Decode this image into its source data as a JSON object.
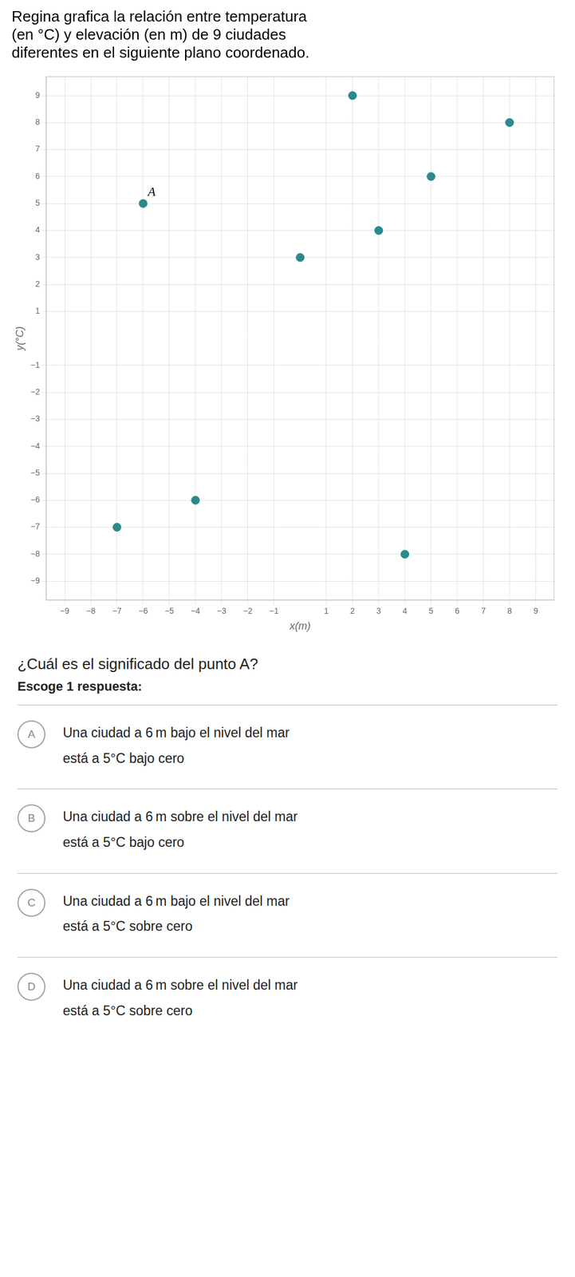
{
  "chart_data": {
    "type": "scatter",
    "title": [
      "Regina grafica la relación entre temperatura",
      "(en °C) y elevación (en m) de 9 ciudades",
      "diferentes en el siguiente plano coordenado."
    ],
    "x_label": "x(m)",
    "y_label": "y(°C)",
    "x": [
      -6,
      2,
      8,
      5,
      3,
      0,
      -4,
      -7,
      4
    ],
    "values": [
      5,
      9,
      8,
      6,
      4,
      3,
      -6,
      -7,
      -8
    ],
    "color": "#2a8a8c",
    "xlim": [
      -9.7,
      9.7
    ],
    "ylim": [
      -9.7,
      9.7
    ],
    "xticks": [
      {
        "value": -9,
        "label": "−9"
      },
      {
        "value": -8,
        "label": "−8"
      },
      {
        "value": -7,
        "label": "−7"
      },
      {
        "value": -6,
        "label": "−6"
      },
      {
        "value": -5,
        "label": "−5"
      },
      {
        "value": -4,
        "label": "−4"
      },
      {
        "value": -3,
        "label": "−3"
      },
      {
        "value": -2,
        "label": "−2"
      },
      {
        "value": -1,
        "label": "−1"
      },
      1,
      2,
      3,
      4,
      5,
      6,
      7,
      8,
      9
    ],
    "yticks": [
      {
        "value": -9,
        "label": "−9"
      },
      {
        "value": -8,
        "label": "−8"
      },
      {
        "value": -7,
        "label": "−7"
      },
      {
        "value": -6,
        "label": "−6"
      },
      {
        "value": -5,
        "label": "−5"
      },
      {
        "value": -4,
        "label": "−4"
      },
      {
        "value": -3,
        "label": "−3"
      },
      {
        "value": -2,
        "label": "−2"
      },
      {
        "value": -1,
        "label": "−1"
      },
      1,
      2,
      3,
      4,
      5,
      6,
      7,
      8,
      9
    ],
    "grid": true,
    "annotations": [
      {
        "text": "A",
        "x": -6,
        "y": 5
      },
      {
        "text": "¿Cuál es el significado del punto A?"
      },
      {
        "text": "Escoge 1 respuesta:"
      },
      {
        "label": "A",
        "lines": [
          "Una ciudad a 6 m bajo el nivel del mar",
          "está a 5°C bajo cero"
        ]
      },
      {
        "label": "B",
        "lines": [
          "Una ciudad a 6 m sobre el nivel del mar",
          "está a 5°C bajo cero"
        ]
      },
      {
        "label": "C",
        "lines": [
          "Una ciudad a 6 m bajo el nivel del mar",
          "está a 5°C sobre cero"
        ]
      },
      {
        "label": "D",
        "lines": [
          "Una ciudad a 6 m sobre el nivel del mar",
          "está a 5°C sobre cero"
        ]
      }
    ]
  }
}
